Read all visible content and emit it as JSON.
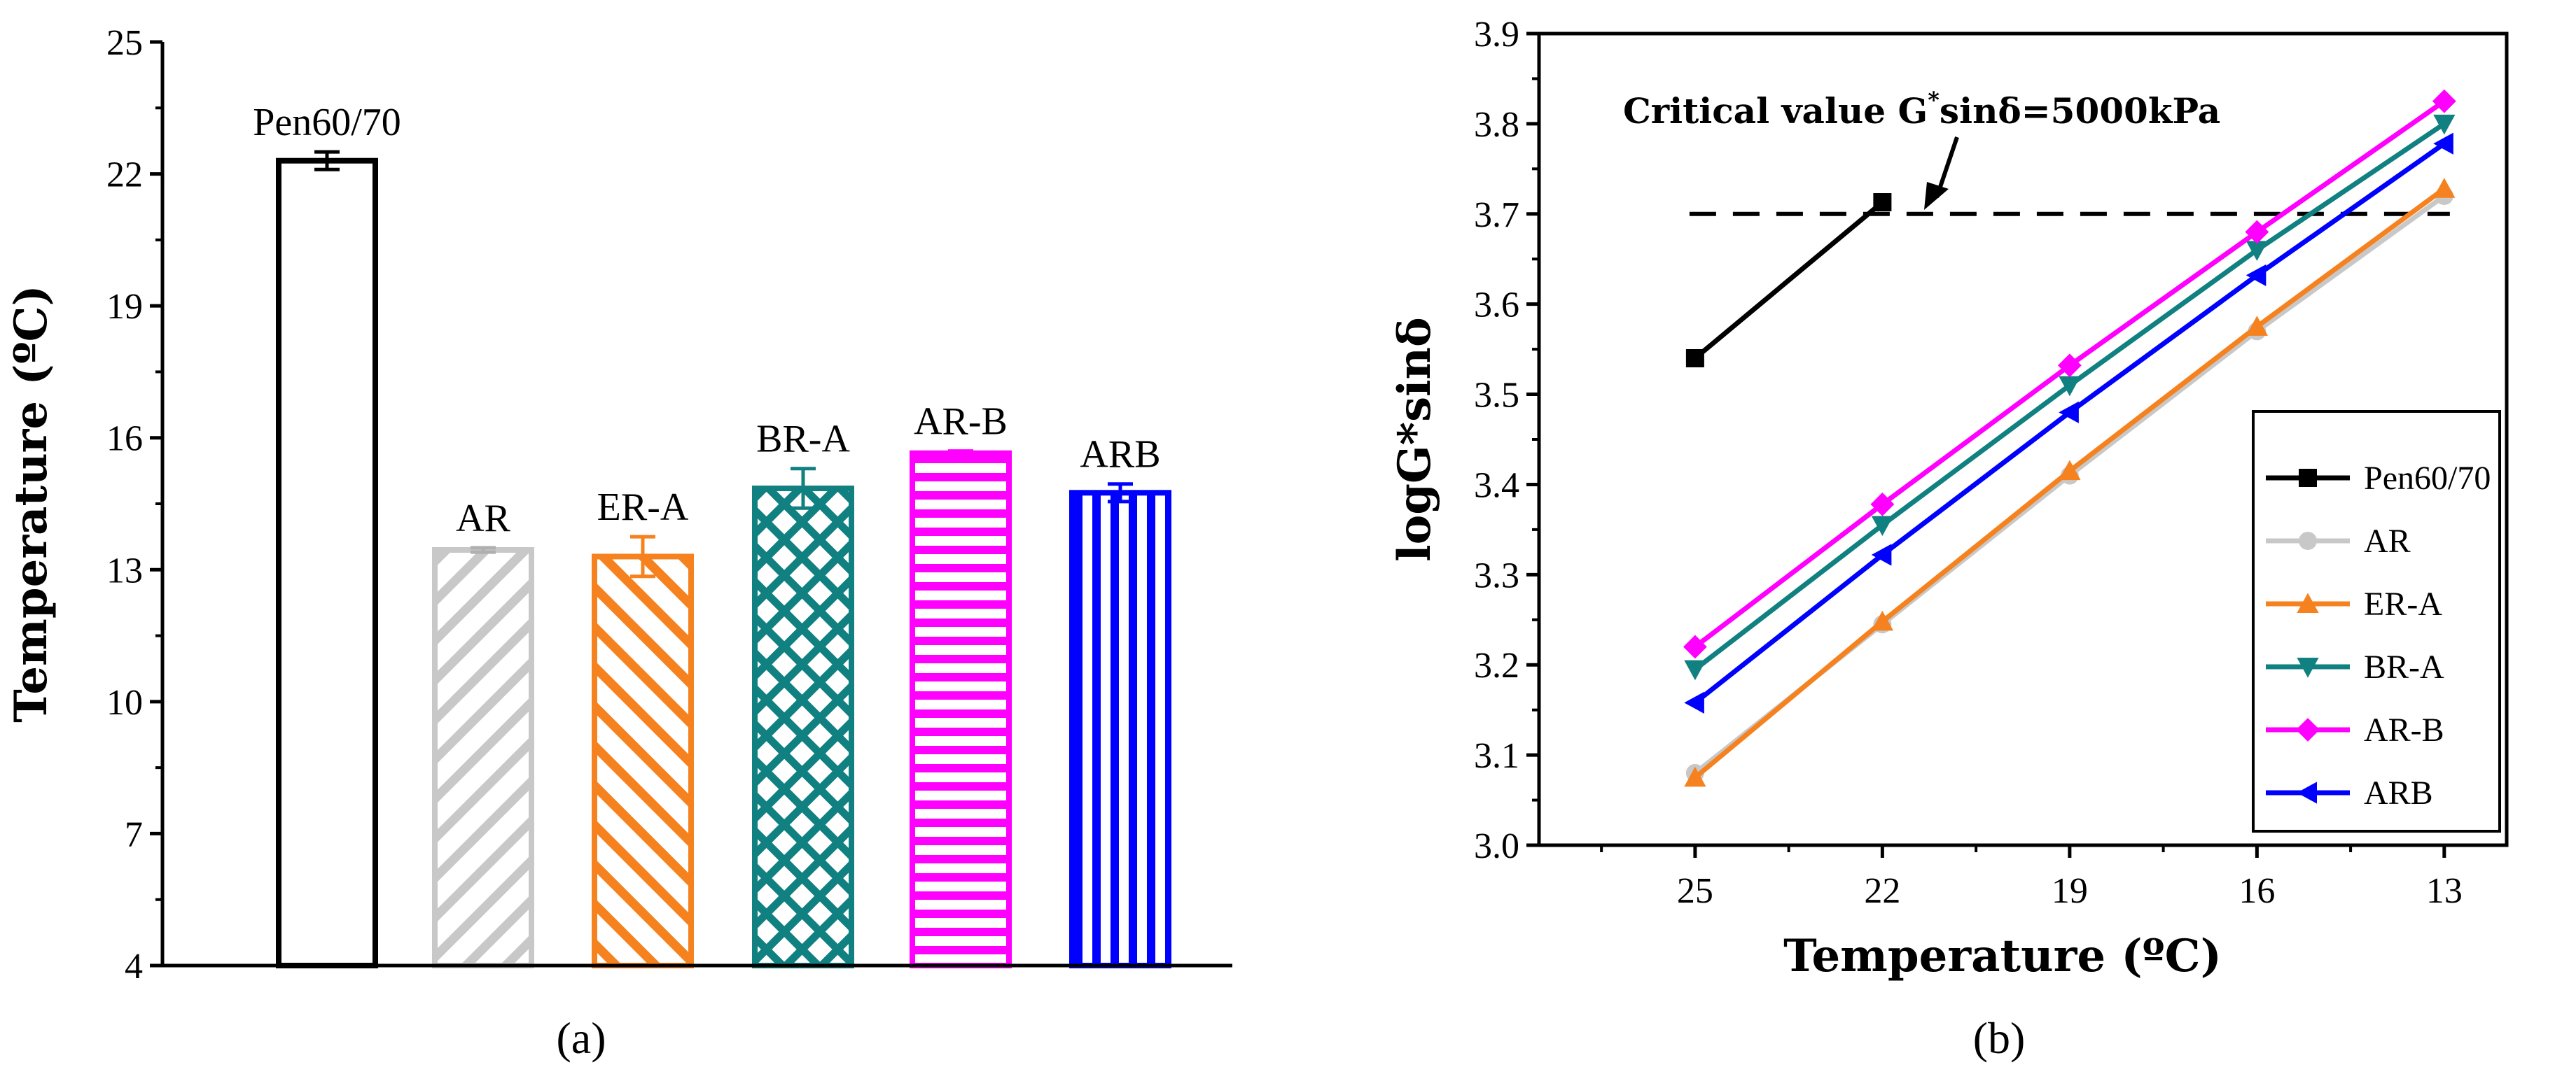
{
  "chart_data": [
    {
      "panel": "(a)",
      "type": "bar",
      "title": "",
      "xlabel": "",
      "ylabel": "Temperature (ºC)",
      "ylim": [
        4,
        25
      ],
      "yticks": [
        4,
        7,
        10,
        13,
        16,
        19,
        22,
        25
      ],
      "categories": [
        "Pen60/70",
        "AR",
        "ER-A",
        "BR-A",
        "AR-B",
        "ARB"
      ],
      "values": [
        22.3,
        13.45,
        13.3,
        14.85,
        15.65,
        14.75
      ],
      "errors": [
        0.2,
        0.05,
        0.45,
        0.45,
        0.05,
        0.2
      ],
      "colors": [
        "#000000",
        "#c8c8c8",
        "#f5821f",
        "#108080",
        "#ff00ff",
        "#0000ff"
      ],
      "patterns": [
        "none",
        "diag-right",
        "diag-left",
        "crosshatch",
        "horizontal",
        "vertical"
      ]
    },
    {
      "panel": "(b)",
      "type": "line",
      "title": "",
      "xlabel": "Temperature (ºC)",
      "ylabel": "logG*sinδ",
      "x": [
        25,
        22,
        19,
        16,
        13
      ],
      "xlim": [
        27.5,
        12.0
      ],
      "ylim": [
        3.0,
        3.9
      ],
      "yticks": [
        3.0,
        3.1,
        3.2,
        3.3,
        3.4,
        3.5,
        3.6,
        3.7,
        3.8,
        3.9
      ],
      "series": [
        {
          "name": "Pen60/70",
          "x": [
            25,
            22
          ],
          "values": [
            3.54,
            3.713
          ],
          "color": "#000000",
          "marker": "square"
        },
        {
          "name": "AR",
          "x": [
            25,
            22,
            19,
            16,
            13
          ],
          "values": [
            3.08,
            3.245,
            3.41,
            3.57,
            3.72
          ],
          "color": "#c8c8c8",
          "marker": "circle"
        },
        {
          "name": "ER-A",
          "x": [
            25,
            22,
            19,
            16,
            13
          ],
          "values": [
            3.075,
            3.248,
            3.415,
            3.575,
            3.728
          ],
          "color": "#f5821f",
          "marker": "triangle-up"
        },
        {
          "name": "BR-A",
          "x": [
            25,
            22,
            19,
            16,
            13
          ],
          "values": [
            3.195,
            3.355,
            3.51,
            3.66,
            3.8
          ],
          "color": "#108080",
          "marker": "triangle-down"
        },
        {
          "name": "AR-B",
          "x": [
            25,
            22,
            19,
            16,
            13
          ],
          "values": [
            3.22,
            3.378,
            3.532,
            3.68,
            3.825
          ],
          "color": "#ff00ff",
          "marker": "diamond"
        },
        {
          "name": "ARB",
          "x": [
            25,
            22,
            19,
            16,
            13
          ],
          "values": [
            3.158,
            3.322,
            3.48,
            3.632,
            3.778
          ],
          "color": "#0000ff",
          "marker": "triangle-left"
        }
      ],
      "reference_line": {
        "value": 3.7,
        "style": "dashed"
      },
      "annotation": {
        "text_main": "Critical value G",
        "text_sup": "*",
        "text_end": "sinδ=5000kPa",
        "points_to": {
          "x": 20.7,
          "y": 3.7
        }
      },
      "legend": "right"
    }
  ],
  "captions": {
    "a": "(a)",
    "b": "(b)"
  }
}
